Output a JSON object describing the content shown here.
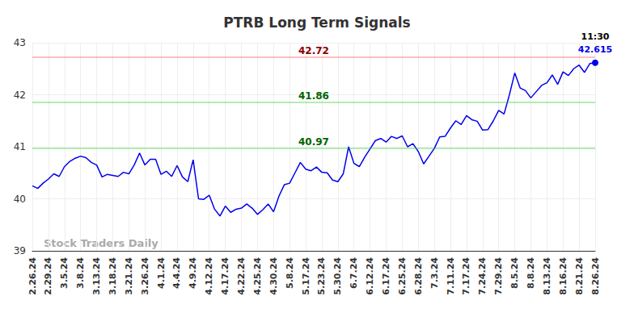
{
  "chart_data": {
    "type": "line",
    "title": "PTRB Long Term Signals",
    "watermark": "Stock Traders Daily",
    "color": "#0000ee",
    "grid": true,
    "categories": [
      "2.26.24",
      null,
      null,
      "2.29.24",
      null,
      null,
      "3.5.24",
      null,
      null,
      "3.8.24",
      null,
      null,
      "3.13.24",
      null,
      null,
      "3.18.24",
      null,
      null,
      "3.21.24",
      null,
      null,
      "3.26.24",
      null,
      null,
      "4.1.24",
      null,
      null,
      "4.4.24",
      null,
      null,
      "4.9.24",
      null,
      null,
      "4.12.24",
      null,
      null,
      "4.17.24",
      null,
      null,
      "4.22.24",
      null,
      null,
      "4.25.24",
      null,
      null,
      "4.30.24",
      null,
      null,
      "5.8.24",
      null,
      null,
      "5.17.24",
      null,
      null,
      "5.23.24",
      null,
      null,
      "5.30.24",
      null,
      null,
      "6.7.24",
      null,
      null,
      "6.12.24",
      null,
      null,
      "6.17.24",
      null,
      null,
      "6.25.24",
      null,
      null,
      "6.28.24",
      null,
      null,
      "7.3.24",
      null,
      null,
      "7.11.24",
      null,
      null,
      "7.17.24",
      null,
      null,
      "7.24.24",
      null,
      null,
      "7.29.24",
      null,
      null,
      "8.5.24",
      null,
      null,
      "8.8.24",
      null,
      null,
      "8.13.24",
      null,
      null,
      "8.16.24",
      null,
      null,
      "8.21.24",
      null,
      null,
      "8.26.24"
    ],
    "values": [
      40.25,
      40.2,
      40.3,
      40.38,
      40.48,
      40.43,
      40.62,
      40.72,
      40.78,
      40.82,
      40.79,
      40.7,
      40.65,
      40.42,
      40.47,
      40.45,
      40.43,
      40.51,
      40.48,
      40.65,
      40.88,
      40.65,
      40.76,
      40.76,
      40.47,
      40.53,
      40.43,
      40.64,
      40.42,
      40.33,
      40.75,
      40.0,
      39.99,
      40.07,
      39.8,
      39.67,
      39.86,
      39.74,
      39.8,
      39.82,
      39.9,
      39.82,
      39.7,
      39.79,
      39.9,
      39.75,
      40.05,
      40.27,
      40.3,
      40.5,
      40.7,
      40.57,
      40.54,
      40.61,
      40.51,
      40.5,
      40.36,
      40.33,
      40.48,
      41.0,
      40.68,
      40.62,
      40.8,
      40.96,
      41.12,
      41.16,
      41.09,
      41.2,
      41.16,
      41.21,
      41.0,
      41.06,
      40.91,
      40.67,
      40.82,
      40.97,
      41.19,
      41.2,
      41.36,
      41.5,
      41.43,
      41.6,
      41.52,
      41.49,
      41.32,
      41.33,
      41.5,
      41.7,
      41.63,
      42.0,
      42.42,
      42.13,
      42.08,
      41.94,
      42.06,
      42.18,
      42.23,
      42.38,
      42.2,
      42.44,
      42.37,
      42.5,
      42.57,
      42.43,
      42.6,
      42.615
    ],
    "ylim": [
      39,
      43
    ],
    "yticks": [
      39,
      40,
      41,
      42,
      43
    ],
    "annotations": [
      {
        "value": 42.72,
        "label": "42.72",
        "color": "#8b0000"
      },
      {
        "value": 41.86,
        "label": "41.86",
        "color": "#006400"
      },
      {
        "value": 40.97,
        "label": "40.97",
        "color": "#006400"
      }
    ],
    "last_point_time": "11:30"
  }
}
